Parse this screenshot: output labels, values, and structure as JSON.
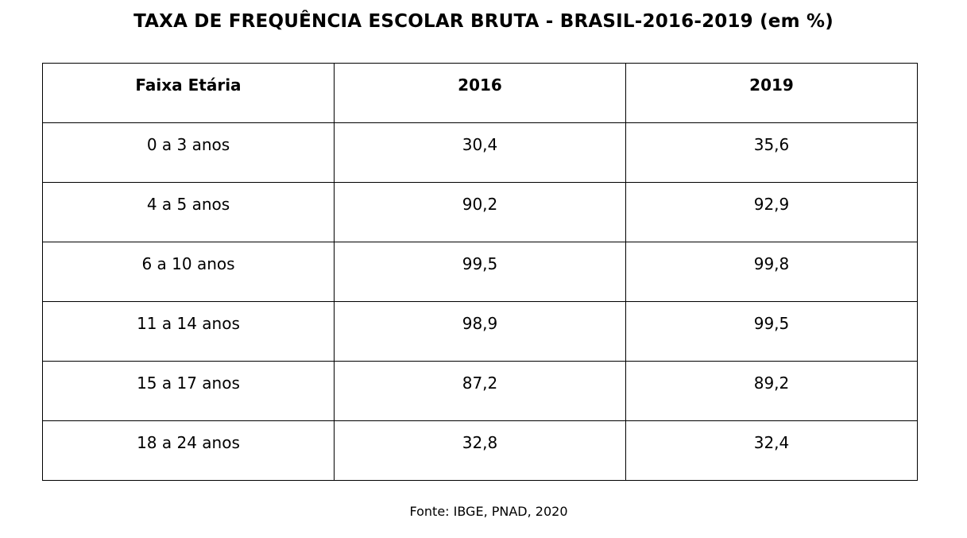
{
  "title": "TAXA DE FREQUÊNCIA ESCOLAR BRUTA - BRASIL-2016-2019  (em %)",
  "source": "Fonte: IBGE, PNAD, 2020",
  "chart_data": {
    "type": "table",
    "title": "TAXA DE FREQUÊNCIA ESCOLAR BRUTA - BRASIL-2016-2019  (em %)",
    "columns": [
      "Faixa Etária",
      "2016",
      "2019"
    ],
    "rows": [
      [
        "0 a 3 anos",
        "30,4",
        "35,6"
      ],
      [
        "4 a 5 anos",
        "90,2",
        "92,9"
      ],
      [
        "6 a 10 anos",
        "99,5",
        "99,8"
      ],
      [
        "11 a 14 anos",
        "98,9",
        "99,5"
      ],
      [
        "15 a 17 anos",
        "87,2",
        "89,2"
      ],
      [
        "18 a 24 anos",
        "32,8",
        "32,4"
      ]
    ]
  }
}
